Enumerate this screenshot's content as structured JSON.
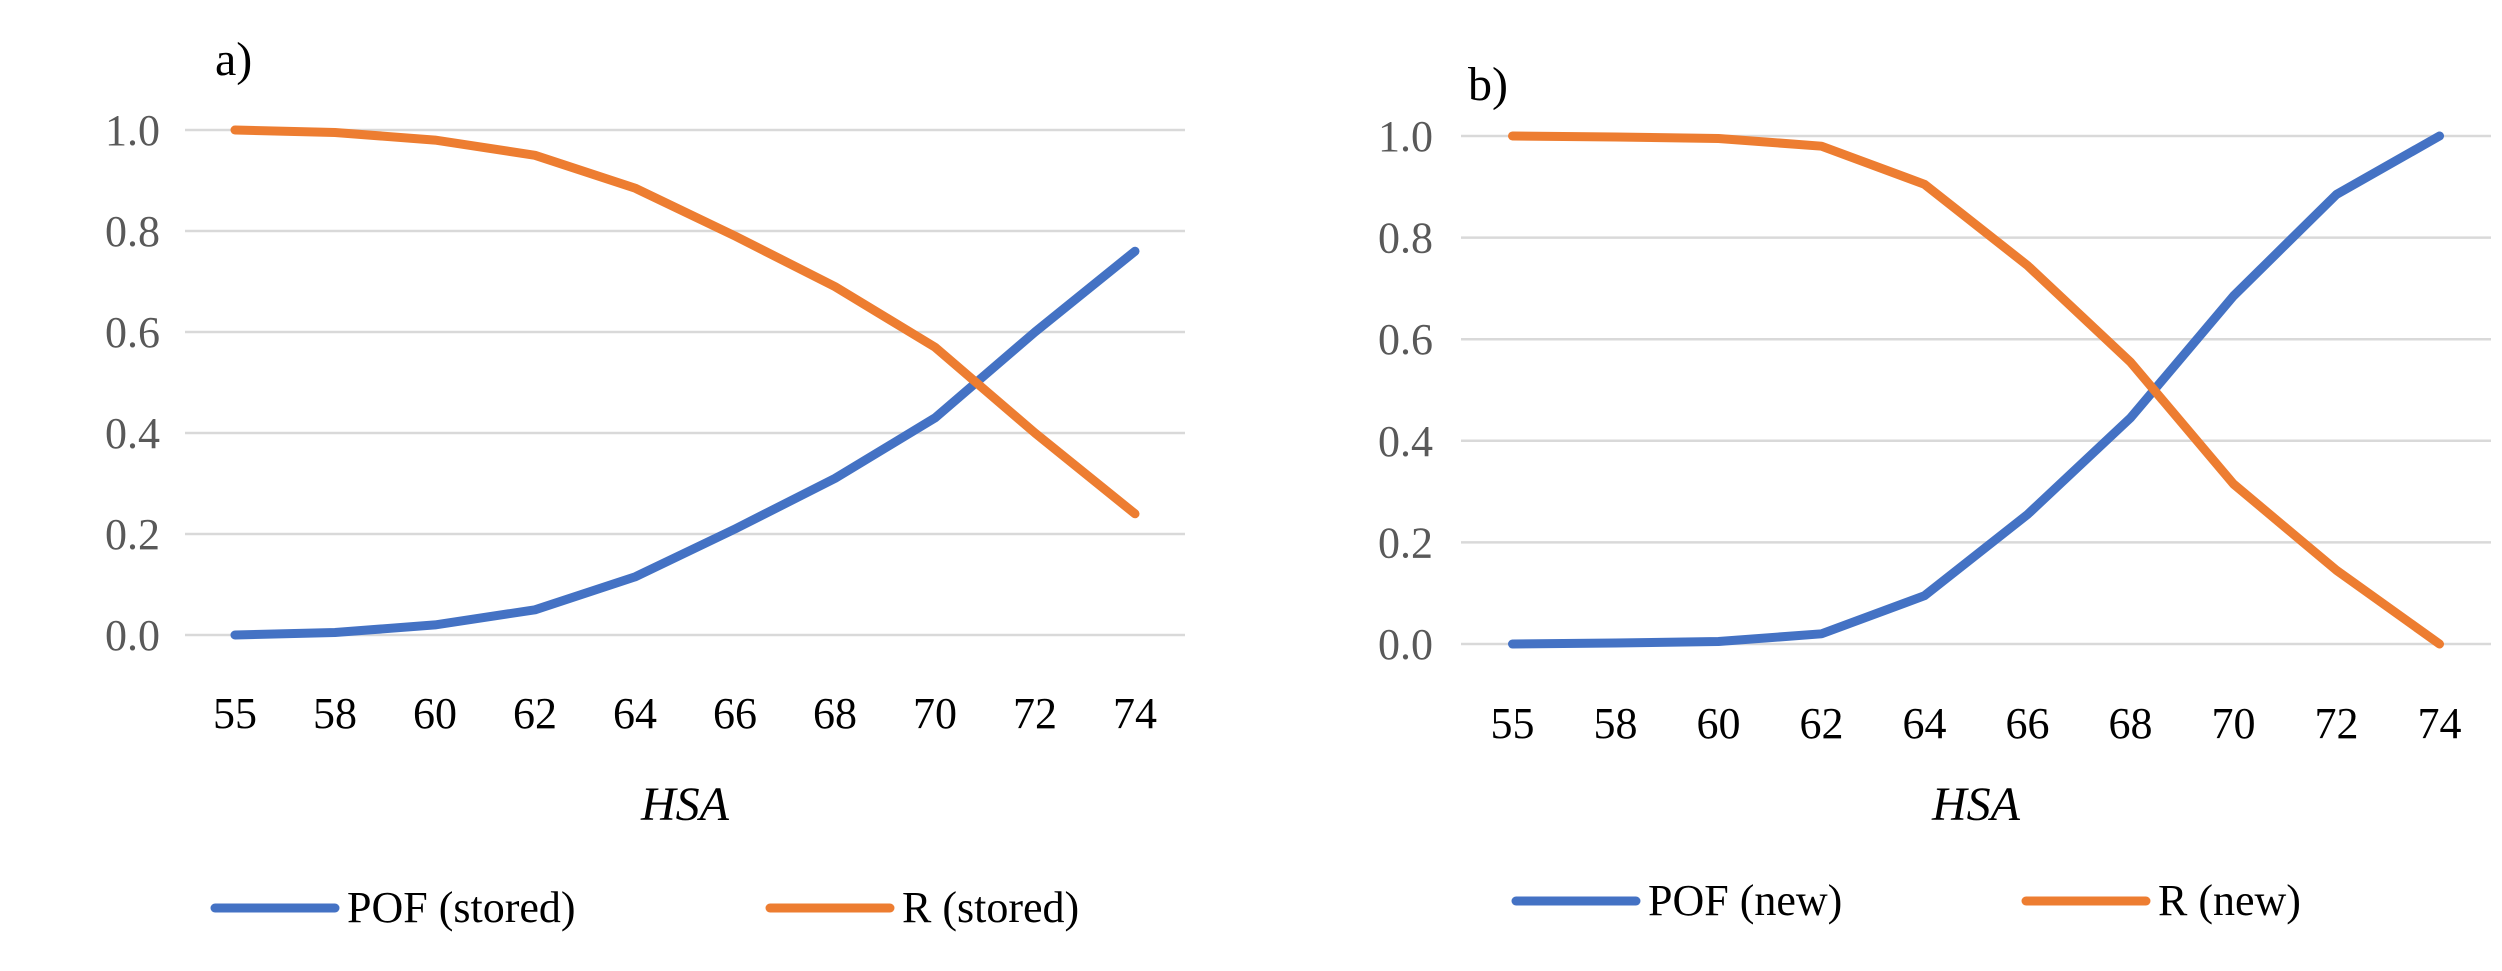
{
  "chart_data": [
    {
      "type": "line",
      "panel_label": "a)",
      "xlabel": "HSA",
      "ylabel": "",
      "categories": [
        "55",
        "58",
        "60",
        "62",
        "64",
        "66",
        "68",
        "70",
        "72",
        "74"
      ],
      "ylim": [
        0,
        1.0
      ],
      "yticks": [
        "0.0",
        "0.2",
        "0.4",
        "0.6",
        "0.8",
        "1.0"
      ],
      "grid": true,
      "legend_position": "bottom",
      "series": [
        {
          "name": "POF (stored)",
          "color": "#4472C4",
          "values": [
            0.0,
            0.005,
            0.02,
            0.05,
            0.115,
            0.21,
            0.31,
            0.43,
            0.6,
            0.76
          ]
        },
        {
          "name": "R (stored)",
          "color": "#ED7D31",
          "values": [
            1.0,
            0.995,
            0.98,
            0.95,
            0.885,
            0.79,
            0.69,
            0.57,
            0.4,
            0.24
          ]
        }
      ]
    },
    {
      "type": "line",
      "panel_label": "b)",
      "xlabel": "HSA",
      "ylabel": "",
      "categories": [
        "55",
        "58",
        "60",
        "62",
        "64",
        "66",
        "68",
        "70",
        "72",
        "74"
      ],
      "ylim": [
        0,
        1.0
      ],
      "yticks": [
        "0.0",
        "0.2",
        "0.4",
        "0.6",
        "0.8",
        "1.0"
      ],
      "grid": true,
      "legend_position": "bottom",
      "series": [
        {
          "name": "POF (new)",
          "color": "#4472C4",
          "values": [
            0.0,
            0.002,
            0.005,
            0.02,
            0.095,
            0.255,
            0.445,
            0.685,
            0.885,
            1.0
          ]
        },
        {
          "name": "R (new)",
          "color": "#ED7D31",
          "values": [
            1.0,
            0.998,
            0.995,
            0.98,
            0.905,
            0.745,
            0.555,
            0.315,
            0.145,
            0.0
          ]
        }
      ]
    }
  ]
}
